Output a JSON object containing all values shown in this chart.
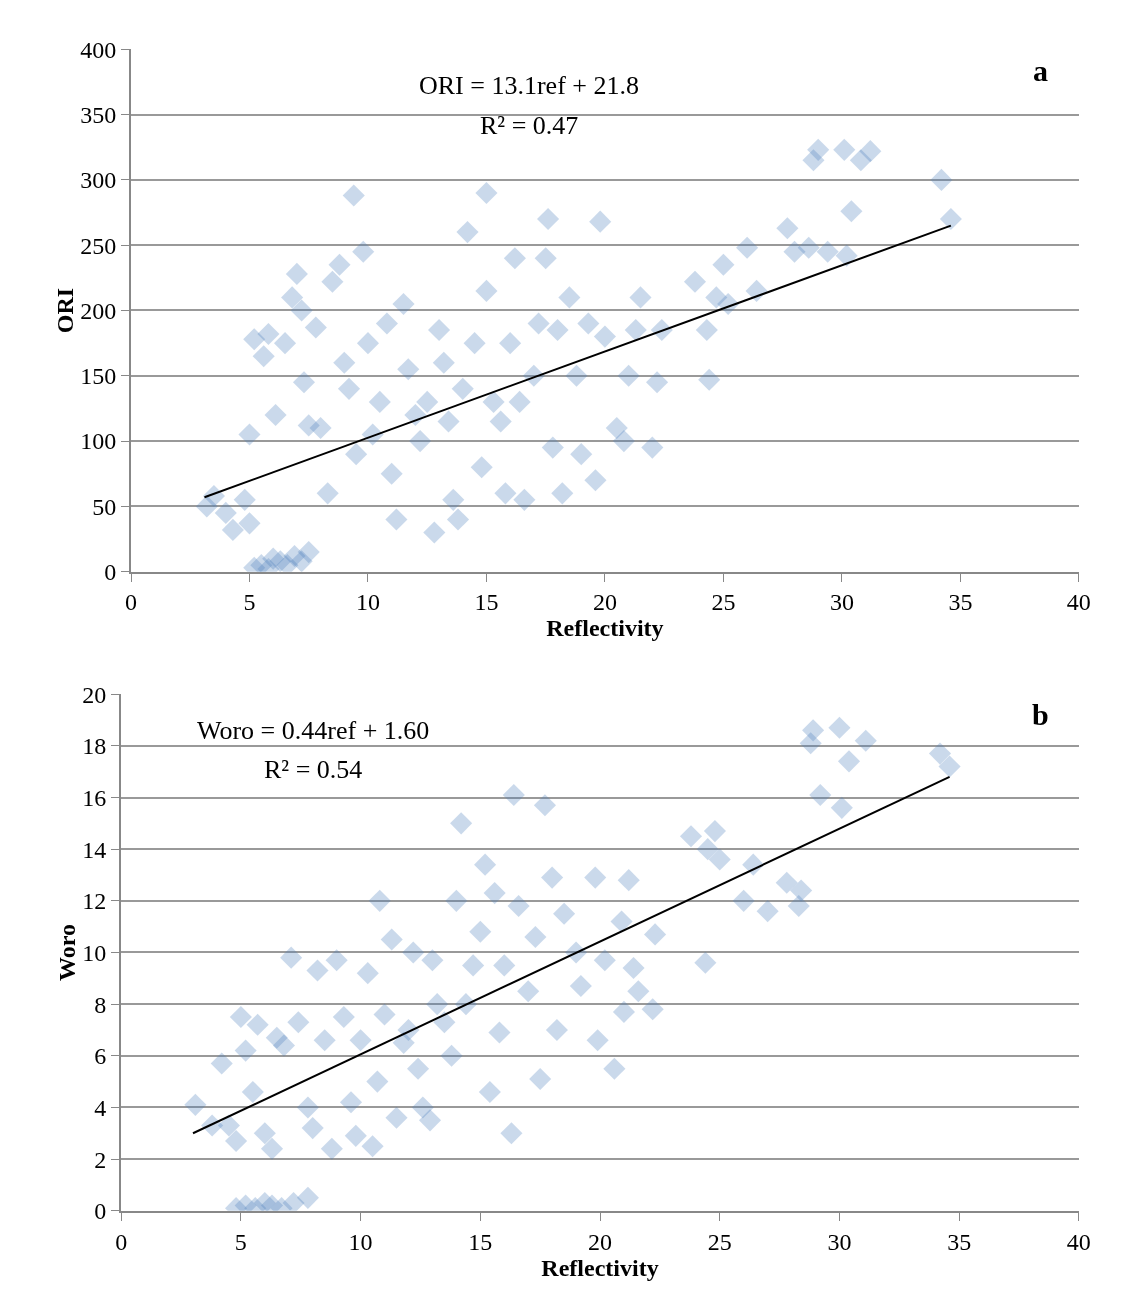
{
  "chart_data": [
    {
      "type": "scatter",
      "xlabel": "Reflectivity",
      "ylabel": "ORI",
      "xlim": [
        0,
        40
      ],
      "xticks": [
        0,
        5,
        10,
        15,
        20,
        25,
        30,
        35,
        40
      ],
      "ylim": [
        0,
        400
      ],
      "yticks": [
        0,
        50,
        100,
        150,
        200,
        250,
        300,
        350,
        400
      ],
      "grid": "y",
      "marker": "diamond",
      "annotations": [
        "ORI = 13.1ref + 21.8",
        "R² = 0.47",
        "a"
      ],
      "series": [
        {
          "color": "#4f81bd",
          "x": [
            3.2,
            3.5,
            4,
            4.3,
            4.8,
            5,
            5.2,
            5.5,
            5.8,
            6,
            6.3,
            6.6,
            6.9,
            7.2,
            7.5,
            5,
            5.2,
            5.6,
            5.8,
            6.1,
            6.5,
            6.8,
            7,
            7.2,
            7.5,
            7.3,
            7.8,
            8,
            8.3,
            8.5,
            8.8,
            9,
            9.2,
            9.4,
            9.8,
            9.5,
            10,
            10.2,
            10.5,
            10.8,
            11,
            11.2,
            11.5,
            11.7,
            12,
            12.2,
            12.5,
            12.8,
            13,
            13.2,
            13.4,
            13.6,
            13.8,
            14,
            14.2,
            14.5,
            14.8,
            15,
            15,
            15.3,
            15.6,
            15.8,
            16,
            16.2,
            16.4,
            16.6,
            17,
            17.2,
            17.5,
            17.6,
            17.8,
            18,
            18.2,
            18.5,
            18.8,
            19,
            19.3,
            19.6,
            19.8,
            20,
            20.5,
            20.8,
            21,
            21.3,
            21.5,
            22,
            22.2,
            22.4,
            23.8,
            24.3,
            24.4,
            24.7,
            25,
            25.2,
            26,
            26.4,
            27.7,
            28,
            28.6,
            28.8,
            29,
            29.4,
            30.1,
            30.2,
            30.4,
            30.8,
            31.2,
            34.2,
            34.6
          ],
          "values": [
            50,
            58,
            45,
            32,
            55,
            37,
            3,
            5,
            2,
            10,
            8,
            5,
            12,
            8,
            15,
            105,
            178,
            165,
            182,
            120,
            175,
            210,
            228,
            200,
            112,
            145,
            187,
            110,
            60,
            222,
            235,
            160,
            140,
            288,
            245,
            90,
            175,
            105,
            130,
            190,
            75,
            40,
            205,
            155,
            120,
            100,
            130,
            30,
            185,
            160,
            115,
            55,
            40,
            140,
            260,
            175,
            80,
            290,
            215,
            130,
            115,
            60,
            175,
            240,
            130,
            55,
            150,
            190,
            240,
            270,
            95,
            185,
            60,
            210,
            150,
            90,
            190,
            70,
            268,
            180,
            110,
            100,
            150,
            185,
            210,
            95,
            145,
            185,
            222,
            185,
            147,
            210,
            235,
            205,
            248,
            215,
            263,
            245,
            248,
            315,
            323,
            245,
            323,
            242,
            276,
            315,
            322,
            300,
            270
          ]
        },
        {
          "type": "line",
          "color": "#000000",
          "marker": "none",
          "x": [
            3.1,
            34.6
          ],
          "values": [
            57,
            265
          ]
        }
      ]
    },
    {
      "type": "scatter",
      "xlabel": "Reflectivity",
      "ylabel": "Woro",
      "xlim": [
        0,
        40
      ],
      "xticks": [
        0,
        5,
        10,
        15,
        20,
        25,
        30,
        35,
        40
      ],
      "ylim": [
        0,
        20
      ],
      "yticks": [
        0,
        2,
        4,
        6,
        8,
        10,
        12,
        14,
        16,
        18,
        20
      ],
      "grid": "y",
      "marker": "diamond",
      "annotations": [
        "Woro = 0.44ref + 1.60",
        "R² = 0.54",
        "b"
      ],
      "series": [
        {
          "color": "#4f81bd",
          "x": [
            3.1,
            3.8,
            4.2,
            4.5,
            4.8,
            5,
            5.2,
            5.5,
            5.7,
            6,
            6.3,
            6.5,
            6.8,
            7.1,
            7.4,
            7.8,
            8,
            8.2,
            8.5,
            8.8,
            9,
            9.3,
            9.6,
            9.8,
            10,
            10.3,
            10.5,
            10.7,
            10.8,
            11,
            11.3,
            11.5,
            11.8,
            12,
            12.2,
            12.4,
            12.6,
            12.9,
            13,
            13.2,
            13.5,
            13.8,
            14,
            14.2,
            14.4,
            14.7,
            15,
            15.2,
            15.4,
            15.6,
            15.8,
            16,
            16.3,
            16.4,
            16.6,
            17,
            17.3,
            17.5,
            17.7,
            18,
            18.2,
            18.5,
            19,
            19.2,
            19.8,
            19.9,
            20.2,
            20.6,
            20.9,
            21,
            21.2,
            21.4,
            21.6,
            22.3,
            22.2,
            23.8,
            24.4,
            24.5,
            24.8,
            25,
            26,
            26.4,
            27,
            27.8,
            28.3,
            28.4,
            28.8,
            28.9,
            29.2,
            30,
            30.1,
            30.4,
            31.1,
            34.2,
            34.6,
            4.8,
            5.2,
            5.6,
            6,
            6.3,
            6.7,
            7.2,
            7.8
          ],
          "values": [
            4.1,
            3.3,
            5.7,
            3.3,
            2.7,
            7.5,
            6.2,
            4.6,
            7.2,
            3.0,
            2.4,
            6.7,
            6.4,
            9.8,
            7.3,
            4,
            3.2,
            9.3,
            6.6,
            2.4,
            9.7,
            7.5,
            4.2,
            2.9,
            6.6,
            9.2,
            2.5,
            5,
            12.0,
            7.6,
            10.5,
            3.6,
            6.5,
            7.0,
            10,
            5.5,
            4,
            3.5,
            9.7,
            8,
            7.3,
            6,
            12,
            15,
            8,
            9.5,
            10.8,
            13.4,
            4.6,
            12.3,
            6.9,
            9.5,
            3.0,
            16.1,
            11.8,
            8.5,
            10.6,
            5.1,
            15.7,
            12.9,
            7.0,
            11.5,
            10,
            8.7,
            12.9,
            6.6,
            9.7,
            5.5,
            11.2,
            7.7,
            12.8,
            9.4,
            8.5,
            10.7,
            7.8,
            14.5,
            9.6,
            14.0,
            14.7,
            13.6,
            12,
            13.4,
            11.6,
            12.7,
            11.8,
            12.4,
            18.1,
            18.6,
            16.1,
            18.7,
            15.6,
            17.4,
            18.2,
            17.7,
            17.2,
            0.1,
            0.2,
            0.1,
            0.3,
            0.2,
            0.1,
            0.3,
            0.5
          ]
        },
        {
          "type": "line",
          "color": "#000000",
          "marker": "none",
          "x": [
            3.0,
            34.6
          ],
          "values": [
            3.0,
            16.8
          ]
        }
      ]
    }
  ]
}
